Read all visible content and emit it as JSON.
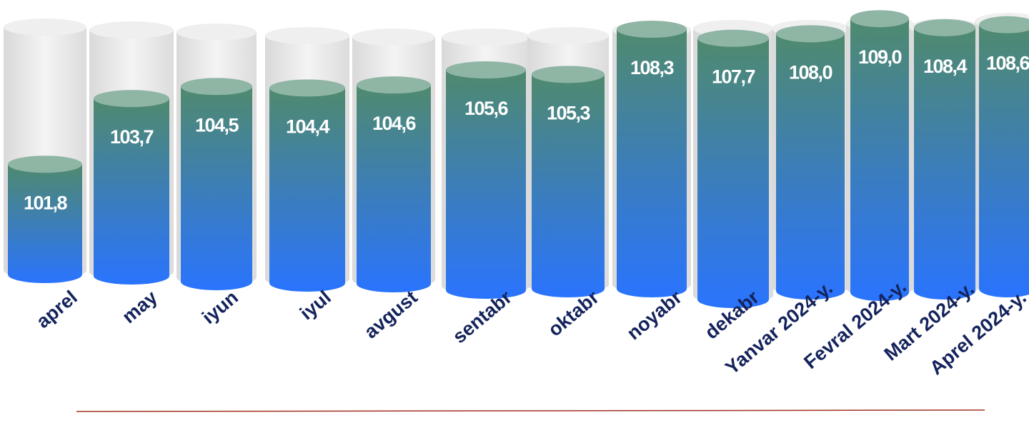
{
  "chart_data": {
    "type": "bar",
    "categories": [
      "aprel",
      "may",
      "iyun",
      "iyul",
      "avgust",
      "sentabr",
      "oktabr",
      "noyabr",
      "dekabr",
      "Yanvar 2024-y.",
      "Fevral 2024-y.",
      "Mart 2024-y.",
      "Aprel 2024-y."
    ],
    "values": [
      101.8,
      103.7,
      104.5,
      104.4,
      104.6,
      105.6,
      105.3,
      108.3,
      107.7,
      108.0,
      109.0,
      108.4,
      108.6
    ],
    "value_labels": [
      "101,8",
      "103,7",
      "104,5",
      "104,4",
      "104,6",
      "105,6",
      "105,3",
      "108,3",
      "107,7",
      "108,0",
      "109,0",
      "108,4",
      "108,6"
    ],
    "title": "",
    "xlabel": "",
    "ylabel": "",
    "style": "3d-cylinders",
    "grid": false,
    "legend": "none",
    "colors": {
      "bar_top": "#4f8a6e",
      "bar_bottom": "#2a74fe",
      "cap": "#8fb5a5",
      "ghost": "#e6e6e6",
      "label_text": "#14235c",
      "baseline": "#a0331f"
    }
  }
}
